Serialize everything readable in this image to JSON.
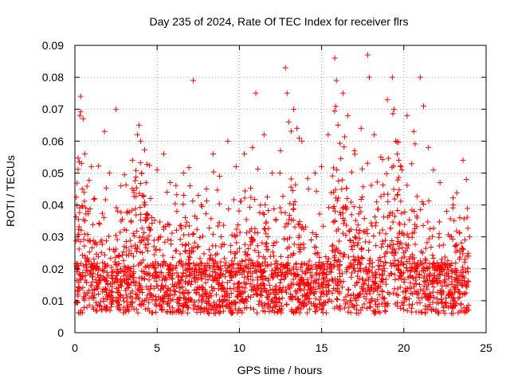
{
  "chart_data": {
    "type": "scatter",
    "title": "Day 235 of 2024, Rate Of TEC Index for receiver flrs",
    "xlabel": "GPS time / hours",
    "ylabel": "ROTI / TECUs",
    "xlim": [
      0,
      25
    ],
    "ylim": [
      0,
      0.09
    ],
    "x_ticks": [
      "0",
      "5",
      "10",
      "15",
      "20",
      "25"
    ],
    "y_ticks": [
      "0",
      "0.01",
      "0.02",
      "0.03",
      "0.04",
      "0.05",
      "0.06",
      "0.07",
      "0.08",
      "0.09"
    ],
    "x_tick_values": [
      0,
      5,
      10,
      15,
      20,
      25
    ],
    "y_tick_values": [
      0,
      0.01,
      0.02,
      0.03,
      0.04,
      0.05,
      0.06,
      0.07,
      0.08,
      0.09
    ],
    "grid": true,
    "marker": "plus",
    "color": "#ff0000",
    "series": [
      {
        "x": [
          0.3,
          0.35,
          0.4,
          0.45,
          0.5,
          0.6,
          0.8,
          1.0,
          1.2,
          1.5,
          1.8,
          2.1,
          2.5,
          2.8,
          3.2,
          3.5,
          3.8,
          3.9,
          4.0,
          4.05,
          4.1,
          4.3,
          4.6,
          5.0,
          5.4,
          5.6,
          5.8,
          6.2,
          6.6,
          7.0,
          7.2,
          7.5,
          8.0,
          8.4,
          8.8,
          9.3,
          9.8,
          10.3,
          10.8,
          11.0,
          11.5,
          12.0,
          12.5,
          12.8,
          12.9,
          13.0,
          13.3,
          13.5,
          13.8,
          14.2,
          14.6,
          15.0,
          15.4,
          15.8,
          15.9,
          16.0,
          16.3,
          16.6,
          17.0,
          17.4,
          17.8,
          17.9,
          18.2,
          18.6,
          19.0,
          19.3,
          19.4,
          19.5,
          19.8,
          20.2,
          20.6,
          21.0,
          21.2,
          21.5,
          21.8,
          22.2,
          22.6,
          23.0,
          23.4,
          23.6,
          23.8,
          24.0
        ],
        "y": [
          0.068,
          0.074,
          0.053,
          0.045,
          0.067,
          0.056,
          0.038,
          0.052,
          0.042,
          0.034,
          0.063,
          0.05,
          0.07,
          0.046,
          0.038,
          0.054,
          0.062,
          0.065,
          0.06,
          0.05,
          0.043,
          0.036,
          0.042,
          0.051,
          0.056,
          0.044,
          0.047,
          0.038,
          0.05,
          0.046,
          0.079,
          0.043,
          0.045,
          0.056,
          0.049,
          0.06,
          0.052,
          0.056,
          0.058,
          0.075,
          0.062,
          0.05,
          0.057,
          0.083,
          0.075,
          0.066,
          0.07,
          0.064,
          0.06,
          0.045,
          0.05,
          0.052,
          0.062,
          0.086,
          0.079,
          0.065,
          0.075,
          0.068,
          0.057,
          0.064,
          0.087,
          0.08,
          0.062,
          0.055,
          0.073,
          0.08,
          0.07,
          0.06,
          0.052,
          0.068,
          0.063,
          0.08,
          0.071,
          0.058,
          0.051,
          0.047,
          0.038,
          0.04,
          0.036,
          0.054,
          0.048,
          0.03
        ]
      }
    ]
  }
}
